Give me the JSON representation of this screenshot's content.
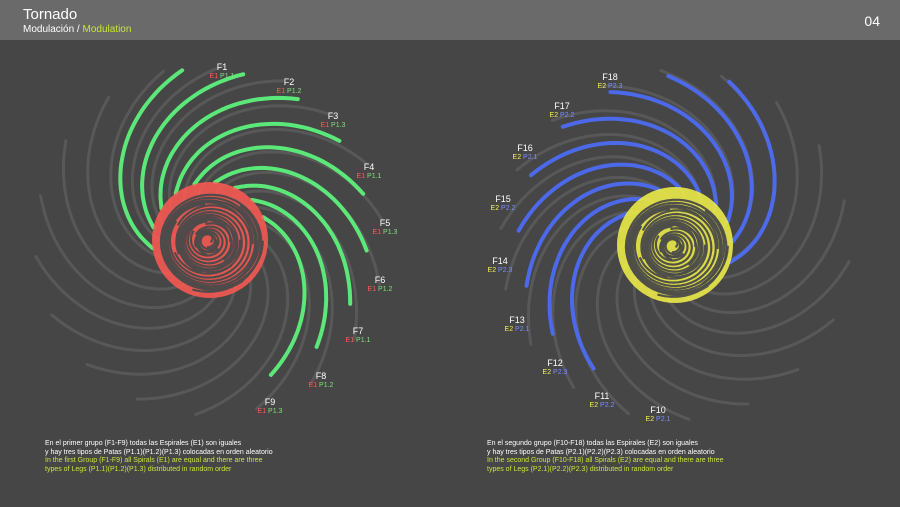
{
  "header": {
    "title": "Tornado",
    "subtitle_es": "Modulación",
    "subtitle_sep": " / ",
    "subtitle_en": "Modulation",
    "page_number": "04"
  },
  "colors": {
    "background": "#464646",
    "header": "#6a6a6a",
    "group1_spiral": "#ff5a52",
    "group1_legs": "#5ef07c",
    "group2_spiral": "#f4f44a",
    "group2_legs": "#4d6cf2",
    "accent": "#c8e63c"
  },
  "group1": {
    "labels": [
      {
        "name": "F1",
        "spiral": "E1",
        "leg": "P1.1"
      },
      {
        "name": "F2",
        "spiral": "E1",
        "leg": "P1.2"
      },
      {
        "name": "F3",
        "spiral": "E1",
        "leg": "P1.3"
      },
      {
        "name": "F4",
        "spiral": "E1",
        "leg": "P1.1"
      },
      {
        "name": "F5",
        "spiral": "E1",
        "leg": "P1.3"
      },
      {
        "name": "F6",
        "spiral": "E1",
        "leg": "P1.2"
      },
      {
        "name": "F7",
        "spiral": "E1",
        "leg": "P1.1"
      },
      {
        "name": "F8",
        "spiral": "E1",
        "leg": "P1.2"
      },
      {
        "name": "F9",
        "spiral": "E1",
        "leg": "P1.3"
      }
    ],
    "caption_es_1": "En el primer grupo (F1-F9) todas las Espirales (E1) son iguales",
    "caption_es_2": "y hay tres tipos de Patas (P1.1)(P1.2)(P1.3) colocadas en orden aleatorio",
    "caption_en_1": "In the first Group (F1-F9) all Spirals (E1) are equal and there are three",
    "caption_en_2": "types of Legs (P1.1)(P1.2)(P1.3) distributed in random order"
  },
  "group2": {
    "labels": [
      {
        "name": "F18",
        "spiral": "E2",
        "leg": "P2.3"
      },
      {
        "name": "F17",
        "spiral": "E2",
        "leg": "P2.2"
      },
      {
        "name": "F16",
        "spiral": "E2",
        "leg": "P2.1"
      },
      {
        "name": "F15",
        "spiral": "E2",
        "leg": "P2.2"
      },
      {
        "name": "F14",
        "spiral": "E2",
        "leg": "P2.3"
      },
      {
        "name": "F13",
        "spiral": "E2",
        "leg": "P2.1"
      },
      {
        "name": "F12",
        "spiral": "E2",
        "leg": "P2.3"
      },
      {
        "name": "F11",
        "spiral": "E2",
        "leg": "P2.2"
      },
      {
        "name": "F10",
        "spiral": "E2",
        "leg": "P2.1"
      }
    ],
    "caption_es_1": "En el segundo grupo (F10-F18) todas las Espirales (E2) son iguales",
    "caption_es_2": "y hay tres tipos de Patas (P2.1)(P2.2)(P2.3) colocadas en orden aleatorio",
    "caption_en_1": "In the second Group (F10-F18) all Spirals (E2) are equal and there are three",
    "caption_en_2": "types of Legs (P2.1)(P2.2)(P2.3) distributed in random order"
  }
}
